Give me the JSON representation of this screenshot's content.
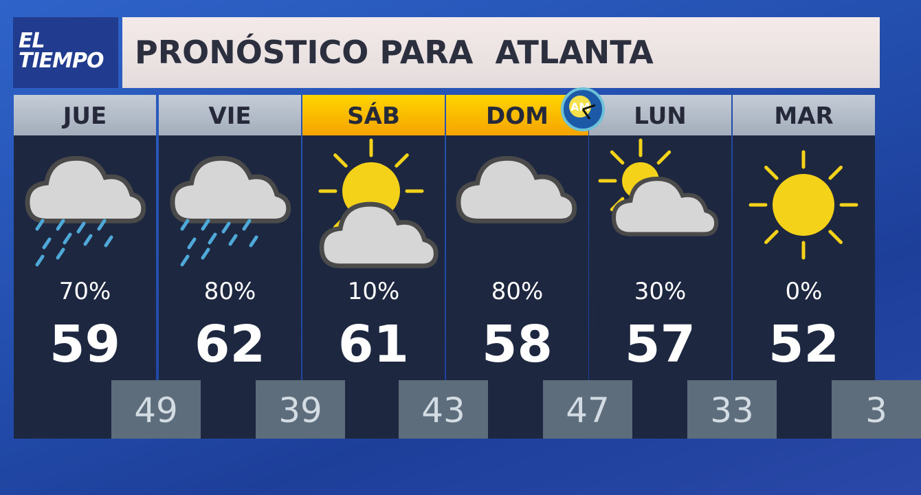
{
  "logo": {
    "line1": "EL",
    "line2": "TIEMPO"
  },
  "title": "PRONÓSTICO PARA  ATLANTA",
  "colors": {
    "weekday_header": "#b4bcc8",
    "weekend_header": "#f8b800",
    "panel": "#1d2740",
    "low_box": "#5e6d7b",
    "sun": "#f4d21a"
  },
  "days": [
    {
      "day": "JUE",
      "icon": "cloud-rain-icon",
      "precip": "70%",
      "high": "59",
      "low": "49",
      "weekend": false
    },
    {
      "day": "VIE",
      "icon": "cloud-rain-icon",
      "precip": "80%",
      "high": "62",
      "low": "39",
      "weekend": false
    },
    {
      "day": "SÁB",
      "icon": "sun-behind-cloud-icon",
      "precip": "10%",
      "high": "61",
      "low": "43",
      "weekend": true
    },
    {
      "day": "DOM",
      "icon": "cloud-icon",
      "precip": "80%",
      "high": "58",
      "low": "47",
      "weekend": true
    },
    {
      "day": "LUN",
      "icon": "sun-behind-cloud-small-icon",
      "precip": "30%",
      "high": "57",
      "low": "33",
      "weekend": false
    },
    {
      "day": "MAR",
      "icon": "sun-icon",
      "precip": "0%",
      "high": "52",
      "low": "3",
      "weekend": false
    }
  ],
  "station_bug": "AM"
}
